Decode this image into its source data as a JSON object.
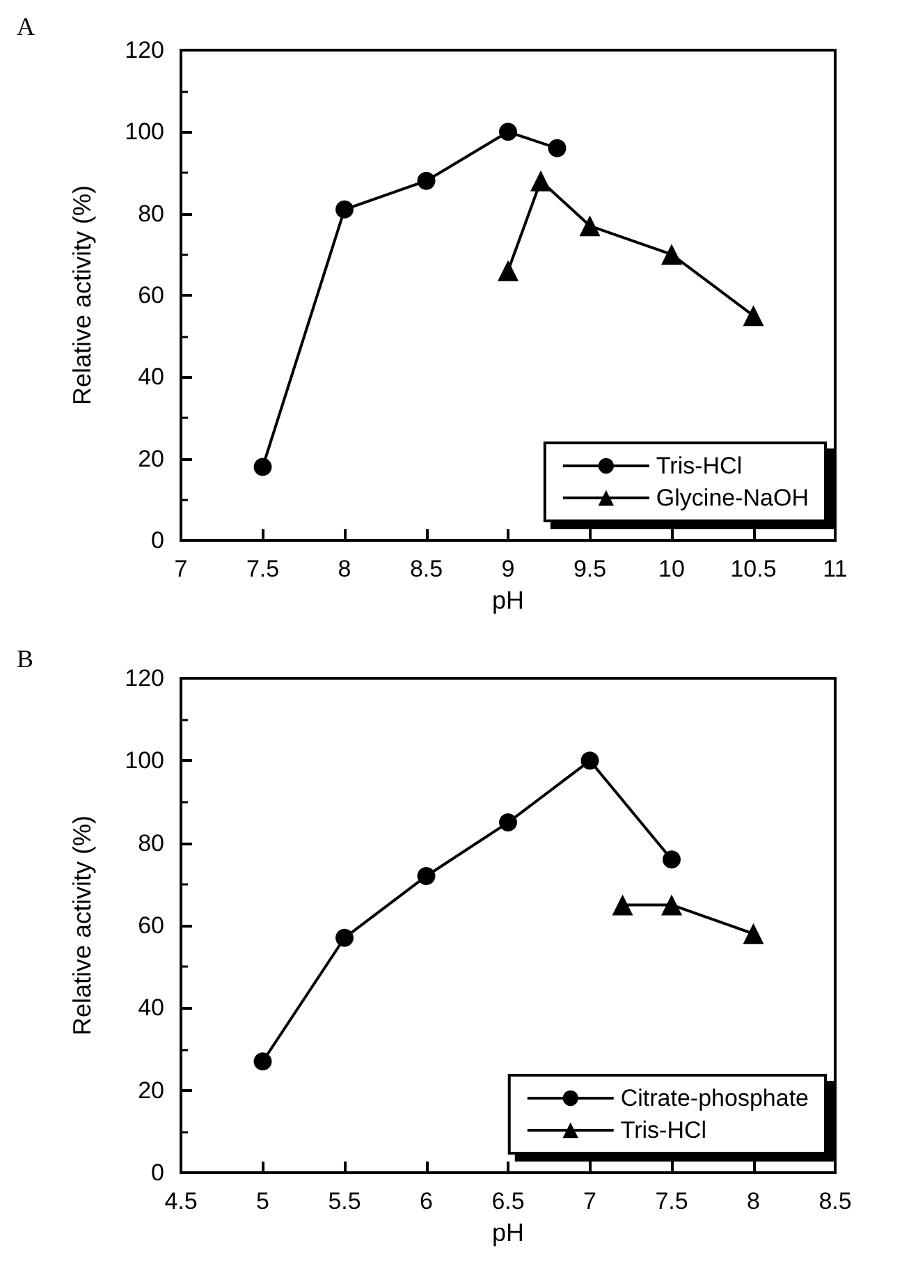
{
  "chart_data": [
    {
      "type": "line",
      "annotations": [
        "A"
      ],
      "xlabel": "pH",
      "ylabel": "Relative activity (%)",
      "xlim": [
        7,
        11
      ],
      "xticks": [
        7,
        7.5,
        8,
        8.5,
        9,
        9.5,
        10,
        10.5,
        11
      ],
      "ylim": [
        0,
        120
      ],
      "yticks": [
        0,
        20,
        40,
        60,
        80,
        100,
        120
      ],
      "grid": false,
      "legend": "bottom right",
      "series": [
        {
          "name": "Tris-HCl",
          "color": "#000000",
          "marker": "circle",
          "x": [
            7.5,
            8,
            8.5,
            9,
            9.3
          ],
          "values": [
            18,
            81,
            88,
            100,
            96
          ]
        },
        {
          "name": "Glycine-NaOH",
          "color": "#000000",
          "marker": "triangle",
          "x": [
            9,
            9.2,
            9.5,
            10,
            10.5
          ],
          "values": [
            66,
            88,
            77,
            70,
            55
          ]
        }
      ]
    },
    {
      "type": "line",
      "annotations": [
        "B"
      ],
      "xlabel": "pH",
      "ylabel": "Relative activity (%)",
      "xlim": [
        4.5,
        8.5
      ],
      "xticks": [
        4.5,
        5,
        5.5,
        6,
        6.5,
        7,
        7.5,
        8,
        8.5
      ],
      "ylim": [
        0,
        120
      ],
      "yticks": [
        0,
        20,
        40,
        60,
        80,
        100,
        120
      ],
      "grid": false,
      "legend": "bottom right",
      "series": [
        {
          "name": "Citrate-phosphate",
          "color": "#000000",
          "marker": "circle",
          "x": [
            5,
            5.5,
            6,
            6.5,
            7,
            7.5
          ],
          "values": [
            27,
            57,
            72,
            85,
            100,
            76
          ]
        },
        {
          "name": "Tris-HCl",
          "color": "#000000",
          "marker": "triangle",
          "x": [
            7.2,
            7.5,
            8
          ],
          "values": [
            65,
            65,
            58
          ]
        }
      ]
    }
  ]
}
